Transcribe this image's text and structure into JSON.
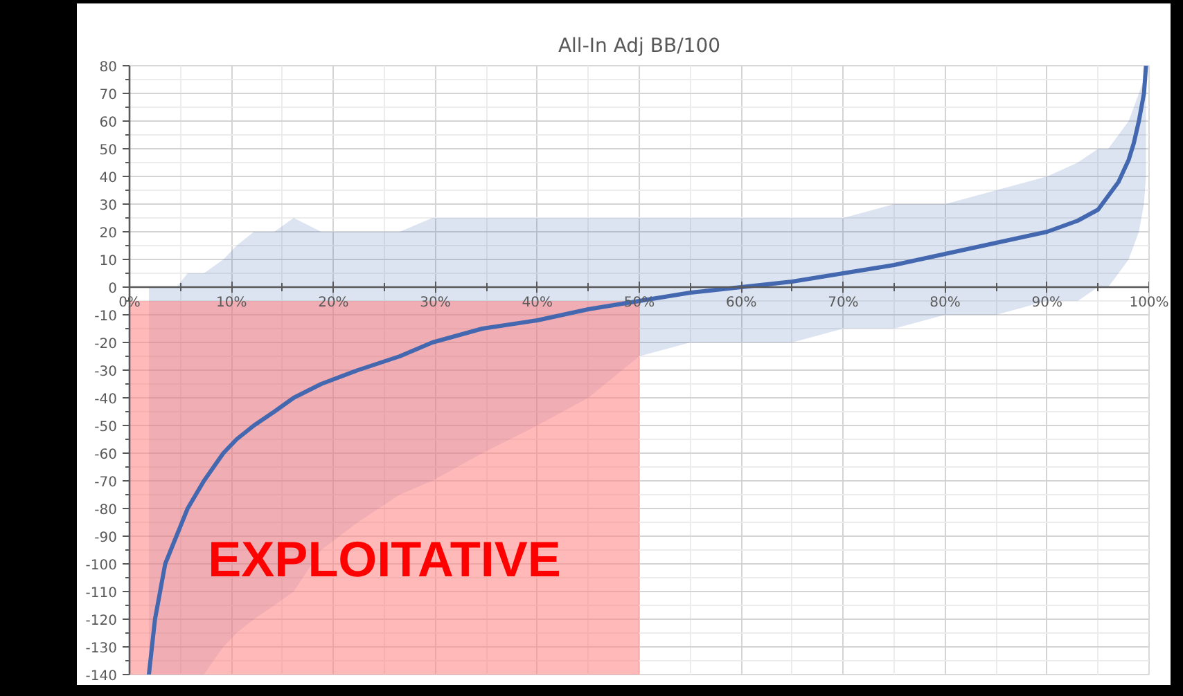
{
  "chart_data": {
    "type": "line",
    "title": "All-In Adj BB/100",
    "x": [
      1.9,
      2.2,
      2.5,
      3.0,
      3.5,
      4.6,
      5.7,
      7.3,
      9.2,
      10.5,
      12.2,
      14.2,
      16.1,
      18.8,
      22.4,
      26.5,
      29.7,
      34.6,
      40,
      45,
      50,
      55,
      60,
      65,
      70,
      75,
      80,
      85,
      90,
      93,
      95,
      96,
      97,
      98,
      98.5,
      99,
      99.5,
      99.7
    ],
    "series": [
      {
        "color": "#4468b0",
        "values": [
          -140,
          -130,
          -120,
          -110,
          -100,
          -90,
          -80,
          -70,
          -60,
          -55,
          -50,
          -45,
          -40,
          -35,
          -30,
          -25,
          -20,
          -15,
          -12,
          -8,
          -5,
          -2,
          0,
          2,
          5,
          8,
          12,
          16,
          20,
          24,
          28,
          33,
          38,
          46,
          52,
          60,
          70,
          80
        ],
        "upper": [
          0,
          0,
          0,
          0,
          0,
          0,
          5,
          5,
          10,
          15,
          20,
          20,
          25,
          20,
          20,
          20,
          25,
          25,
          25,
          25,
          25,
          25,
          25,
          25,
          25,
          30,
          30,
          35,
          40,
          45,
          50,
          50,
          55,
          60,
          65,
          70,
          75,
          80
        ],
        "lower": [
          -140,
          -140,
          -140,
          -140,
          -140,
          -140,
          -140,
          -140,
          -130,
          -125,
          -120,
          -115,
          -110,
          -95,
          -85,
          -75,
          -70,
          -60,
          -50,
          -40,
          -25,
          -20,
          -20,
          -20,
          -15,
          -15,
          -10,
          -10,
          -5,
          -5,
          0,
          0,
          5,
          10,
          15,
          20,
          30,
          40
        ]
      }
    ],
    "xlim": [
      0,
      100
    ],
    "ylim": [
      -140,
      80
    ],
    "xticks": [
      {
        "value": 0,
        "label": "0%"
      },
      {
        "value": 10,
        "label": "10%"
      },
      {
        "value": 20,
        "label": "20%"
      },
      {
        "value": 30,
        "label": "30%"
      },
      {
        "value": 40,
        "label": "40%"
      },
      {
        "value": 50,
        "label": "50%"
      },
      {
        "value": 60,
        "label": "60%"
      },
      {
        "value": 70,
        "label": "70%"
      },
      {
        "value": 80,
        "label": "80%"
      },
      {
        "value": 90,
        "label": "90%"
      },
      {
        "value": 100,
        "label": "100%"
      }
    ],
    "yticks": [
      -140,
      -130,
      -120,
      -110,
      -100,
      -90,
      -80,
      -70,
      -60,
      -50,
      -40,
      -30,
      -20,
      -10,
      0,
      10,
      20,
      30,
      40,
      50,
      60,
      70,
      80
    ],
    "bands": [
      {
        "axis": "x",
        "from": 0,
        "to": 50,
        "label": "EXPLOITATIVE",
        "color": "#ff8080"
      }
    ],
    "grid": true
  }
}
